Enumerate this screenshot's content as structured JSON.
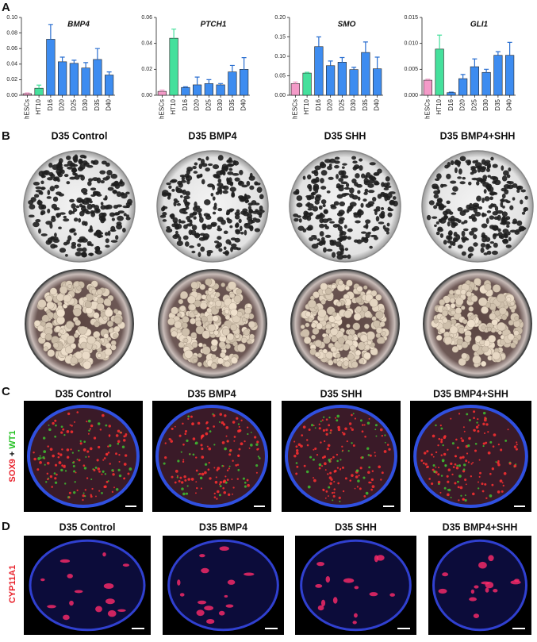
{
  "chart_data": [
    {
      "type": "bar",
      "title": "BMP4",
      "categories": [
        "hESCs",
        "HT10",
        "D16",
        "D20",
        "D25",
        "D30",
        "D35",
        "D40"
      ],
      "values": [
        0.002,
        0.009,
        0.072,
        0.043,
        0.041,
        0.035,
        0.046,
        0.026
      ],
      "errors": [
        0.001,
        0.004,
        0.019,
        0.006,
        0.004,
        0.007,
        0.014,
        0.004
      ],
      "colors": [
        "#f49ac8",
        "#45e09c",
        "#3d8cf0",
        "#3d8cf0",
        "#3d8cf0",
        "#3d8cf0",
        "#3d8cf0",
        "#3d8cf0"
      ],
      "ylim": [
        0,
        0.1
      ],
      "yticks": [
        {
          "value": 0,
          "label": "0.00"
        },
        {
          "value": 0.02,
          "label": "0.02"
        },
        {
          "value": 0.04,
          "label": "0.04"
        },
        {
          "value": 0.06,
          "label": "0.06"
        },
        {
          "value": 0.08,
          "label": "0.08"
        },
        {
          "value": 0.1,
          "label": "0.10"
        }
      ]
    },
    {
      "type": "bar",
      "title": "PTCH1",
      "categories": [
        "hESCs",
        "HT10",
        "D16",
        "D20",
        "D25",
        "D30",
        "D35",
        "D40"
      ],
      "values": [
        0.003,
        0.044,
        0.006,
        0.008,
        0.009,
        0.008,
        0.018,
        0.02
      ],
      "errors": [
        0.001,
        0.007,
        0.0005,
        0.006,
        0.003,
        0.001,
        0.005,
        0.009
      ],
      "colors": [
        "#f49ac8",
        "#45e09c",
        "#3d8cf0",
        "#3d8cf0",
        "#3d8cf0",
        "#3d8cf0",
        "#3d8cf0",
        "#3d8cf0"
      ],
      "ylim": [
        0,
        0.06
      ],
      "yticks": [
        {
          "value": 0,
          "label": "0.00"
        },
        {
          "value": 0.02,
          "label": "0.02"
        },
        {
          "value": 0.04,
          "label": "0.04"
        },
        {
          "value": 0.06,
          "label": "0.06"
        }
      ]
    },
    {
      "type": "bar",
      "title": "SMO",
      "categories": [
        "hESCs",
        "HT10",
        "D16",
        "D20",
        "D25",
        "D30",
        "D35",
        "D40"
      ],
      "values": [
        0.03,
        0.057,
        0.125,
        0.076,
        0.085,
        0.066,
        0.11,
        0.068
      ],
      "errors": [
        0.004,
        0.002,
        0.025,
        0.012,
        0.012,
        0.006,
        0.027,
        0.03
      ],
      "colors": [
        "#f49ac8",
        "#45e09c",
        "#3d8cf0",
        "#3d8cf0",
        "#3d8cf0",
        "#3d8cf0",
        "#3d8cf0",
        "#3d8cf0"
      ],
      "ylim": [
        0,
        0.2
      ],
      "yticks": [
        {
          "value": 0,
          "label": "0.00"
        },
        {
          "value": 0.05,
          "label": "0.05"
        },
        {
          "value": 0.1,
          "label": "0.10"
        },
        {
          "value": 0.15,
          "label": "0.15"
        },
        {
          "value": 0.2,
          "label": "0.20"
        }
      ]
    },
    {
      "type": "bar",
      "title": "GLI1",
      "categories": [
        "hESCs",
        "HT10",
        "D16",
        "D20",
        "D25",
        "D30",
        "D35",
        "D40"
      ],
      "values": [
        0.0029,
        0.0089,
        0.0005,
        0.0032,
        0.0055,
        0.0044,
        0.0077,
        0.0077
      ],
      "errors": [
        0.0002,
        0.0027,
        0.0001,
        0.0008,
        0.0015,
        0.0006,
        0.0007,
        0.0025
      ],
      "colors": [
        "#f49ac8",
        "#45e09c",
        "#3d8cf0",
        "#3d8cf0",
        "#3d8cf0",
        "#3d8cf0",
        "#3d8cf0",
        "#3d8cf0"
      ],
      "ylim": [
        0,
        0.015
      ],
      "yticks": [
        {
          "value": 0,
          "label": "0.000"
        },
        {
          "value": 0.005,
          "label": "0.005"
        },
        {
          "value": 0.01,
          "label": "0.010"
        },
        {
          "value": 0.015,
          "label": "0.015"
        }
      ]
    }
  ],
  "panel_labels": [
    "A",
    "B",
    "C",
    "D"
  ],
  "panel_b": {
    "titles": [
      "D35 Control",
      "D35 BMP4",
      "D35 SHH",
      "D35 BMP4+SHH"
    ]
  },
  "panel_c": {
    "titles": [
      "D35 Control",
      "D35 BMP4",
      "D35 SHH",
      "D35 BMP4+SHH"
    ],
    "stain": [
      "SOX9",
      "+",
      "WT1"
    ]
  },
  "panel_d": {
    "titles": [
      "D35 Control",
      "D35 BMP4",
      "D35 SHH",
      "D35 BMP4+SHH"
    ],
    "stain": "CYP11A1"
  }
}
